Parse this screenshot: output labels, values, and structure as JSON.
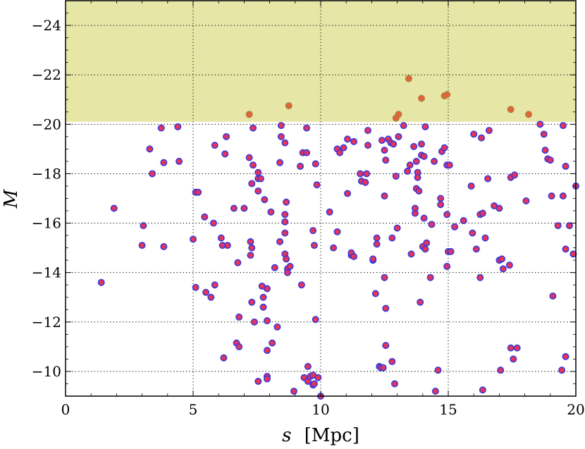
{
  "chart_data": {
    "type": "scatter",
    "xlabel_var": "s",
    "xlabel_unit": "[Mpc]",
    "ylabel": "M",
    "xlim": [
      0,
      20
    ],
    "ylim": [
      -9.0,
      -25.0
    ],
    "y_inverted": true,
    "x_ticks": [
      0,
      5,
      10,
      15,
      20
    ],
    "y_ticks": [
      -24,
      -22,
      -20,
      -18,
      -16,
      -14,
      -12,
      -10
    ],
    "x_tick_labels": [
      "0",
      "5",
      "10",
      "15",
      "20"
    ],
    "y_tick_labels": [
      "−24",
      "−22",
      "−20",
      "−18",
      "−16",
      "−14",
      "−12",
      "−10"
    ],
    "grid": true,
    "shaded_region": {
      "y_from": -20.1,
      "y_to": -25.0,
      "color": "#e6e6a6"
    },
    "marker_colors": {
      "fill": "#e8325a",
      "edge": "#3a3ad8",
      "fill_shaded": "#e8603a",
      "edge_shaded": "#b07f3c"
    },
    "points": [
      [
        1.4,
        -13.6
      ],
      [
        1.9,
        -16.6
      ],
      [
        3.0,
        -15.1
      ],
      [
        3.05,
        -15.9
      ],
      [
        3.3,
        -19.0
      ],
      [
        3.4,
        -18.0
      ],
      [
        3.75,
        -19.85
      ],
      [
        3.85,
        -18.45
      ],
      [
        3.85,
        -15.05
      ],
      [
        4.4,
        -19.9
      ],
      [
        4.45,
        -18.5
      ],
      [
        5.0,
        -15.35
      ],
      [
        5.1,
        -13.4
      ],
      [
        5.1,
        -17.25
      ],
      [
        5.2,
        -17.25
      ],
      [
        5.45,
        -16.25
      ],
      [
        5.5,
        -13.2
      ],
      [
        5.7,
        -13.0
      ],
      [
        5.8,
        -16.0
      ],
      [
        5.85,
        -13.5
      ],
      [
        5.85,
        -19.15
      ],
      [
        6.1,
        -15.4
      ],
      [
        6.15,
        -15.1
      ],
      [
        6.2,
        -10.55
      ],
      [
        6.25,
        -18.8
      ],
      [
        6.3,
        -19.5
      ],
      [
        6.35,
        -15.1
      ],
      [
        6.6,
        -16.6
      ],
      [
        6.7,
        -11.15
      ],
      [
        6.75,
        -14.4
      ],
      [
        6.8,
        -11.0
      ],
      [
        6.8,
        -12.2
      ],
      [
        7.0,
        -16.6
      ],
      [
        7.2,
        -18.65
      ],
      [
        7.25,
        -15.25
      ],
      [
        7.25,
        -14.7
      ],
      [
        7.3,
        -17.6
      ],
      [
        7.3,
        -12.8
      ],
      [
        7.3,
        -15.0
      ],
      [
        7.35,
        -19.85
      ],
      [
        7.35,
        -18.35
      ],
      [
        7.4,
        -12.0
      ],
      [
        7.55,
        -17.8
      ],
      [
        7.55,
        -18.05
      ],
      [
        7.55,
        -17.3
      ],
      [
        7.55,
        -9.6
      ],
      [
        7.65,
        -17.8
      ],
      [
        7.7,
        -13.45
      ],
      [
        7.75,
        -13.0
      ],
      [
        7.75,
        -12.6
      ],
      [
        7.8,
        -16.95
      ],
      [
        7.9,
        -13.35
      ],
      [
        7.9,
        -12.05
      ],
      [
        7.9,
        -10.85
      ],
      [
        7.9,
        -9.8
      ],
      [
        7.9,
        -9.7
      ],
      [
        8.05,
        -16.45
      ],
      [
        8.1,
        -11.15
      ],
      [
        8.2,
        -14.2
      ],
      [
        8.3,
        -11.8
      ],
      [
        8.4,
        -15.25
      ],
      [
        8.4,
        -18.45
      ],
      [
        8.45,
        -19.95
      ],
      [
        8.45,
        -19.5
      ],
      [
        8.6,
        -19.25
      ],
      [
        8.6,
        -16.35
      ],
      [
        8.6,
        -16.05
      ],
      [
        8.6,
        -15.6
      ],
      [
        8.6,
        -14.75
      ],
      [
        8.65,
        -16.85
      ],
      [
        8.65,
        -14.55
      ],
      [
        8.7,
        -14.15
      ],
      [
        8.7,
        -14.0
      ],
      [
        8.8,
        -14.25
      ],
      [
        8.95,
        -9.2
      ],
      [
        9.2,
        -18.3
      ],
      [
        9.25,
        -13.5
      ],
      [
        9.3,
        -18.85
      ],
      [
        9.35,
        -9.75
      ],
      [
        9.45,
        -18.85
      ],
      [
        9.45,
        -19.85
      ],
      [
        9.5,
        -10.2
      ],
      [
        9.5,
        -9.6
      ],
      [
        9.6,
        -9.8
      ],
      [
        9.7,
        -9.85
      ],
      [
        9.7,
        -9.45
      ],
      [
        9.7,
        -15.7
      ],
      [
        9.75,
        -9.5
      ],
      [
        9.75,
        -15.1
      ],
      [
        9.8,
        -18.4
      ],
      [
        9.8,
        -12.1
      ],
      [
        9.85,
        -17.55
      ],
      [
        9.9,
        -9.75
      ],
      [
        10.0,
        -9.0
      ],
      [
        10.35,
        -16.45
      ],
      [
        10.5,
        -15.0
      ],
      [
        10.65,
        -19.0
      ],
      [
        10.65,
        -15.65
      ],
      [
        10.75,
        -18.85
      ],
      [
        10.9,
        -19.05
      ],
      [
        11.05,
        -19.4
      ],
      [
        11.05,
        -17.2
      ],
      [
        11.2,
        -14.7
      ],
      [
        11.2,
        -14.8
      ],
      [
        11.3,
        -14.65
      ],
      [
        11.3,
        -19.3
      ],
      [
        11.55,
        -18.0
      ],
      [
        11.6,
        -17.7
      ],
      [
        11.75,
        -17.65
      ],
      [
        11.8,
        -18.0
      ],
      [
        11.85,
        -19.75
      ],
      [
        11.85,
        -19.15
      ],
      [
        12.05,
        -14.5
      ],
      [
        12.05,
        -14.55
      ],
      [
        12.15,
        -13.15
      ],
      [
        12.2,
        -15.4
      ],
      [
        12.2,
        -15.15
      ],
      [
        12.3,
        -10.2
      ],
      [
        12.35,
        -10.15
      ],
      [
        12.4,
        -19.35
      ],
      [
        12.45,
        -10.15
      ],
      [
        12.5,
        -13.8
      ],
      [
        12.5,
        -18.95
      ],
      [
        12.5,
        -17.1
      ],
      [
        12.55,
        -18.55
      ],
      [
        12.55,
        -11.05
      ],
      [
        12.55,
        -12.55
      ],
      [
        12.65,
        -19.4
      ],
      [
        12.75,
        -19.25
      ],
      [
        12.8,
        -10.4
      ],
      [
        12.8,
        -15.4
      ],
      [
        12.85,
        -19.2
      ],
      [
        12.9,
        -9.5
      ],
      [
        12.95,
        -17.9
      ],
      [
        13.0,
        -15.8
      ],
      [
        13.05,
        -19.5
      ],
      [
        13.25,
        -19.95
      ],
      [
        13.4,
        -18.1
      ],
      [
        13.5,
        -18.35
      ],
      [
        13.55,
        -14.75
      ],
      [
        13.65,
        -19.1
      ],
      [
        13.7,
        -16.4
      ],
      [
        13.7,
        -16.6
      ],
      [
        13.75,
        -18.5
      ],
      [
        13.75,
        -17.4
      ],
      [
        13.8,
        -18.05
      ],
      [
        13.8,
        -17.85
      ],
      [
        13.85,
        -17.3
      ],
      [
        13.9,
        -12.8
      ],
      [
        13.95,
        -18.75
      ],
      [
        13.95,
        -19.2
      ],
      [
        14.0,
        -15.05
      ],
      [
        14.05,
        -18.7
      ],
      [
        14.05,
        -16.2
      ],
      [
        14.1,
        -19.9
      ],
      [
        14.1,
        -14.95
      ],
      [
        14.15,
        -15.2
      ],
      [
        14.3,
        -13.8
      ],
      [
        14.35,
        -15.95
      ],
      [
        14.45,
        -18.5
      ],
      [
        14.5,
        -9.2
      ],
      [
        14.6,
        -10.05
      ],
      [
        14.7,
        -17.0
      ],
      [
        14.7,
        -16.75
      ],
      [
        14.75,
        -18.9
      ],
      [
        14.85,
        -19.05
      ],
      [
        14.95,
        -14.25
      ],
      [
        14.95,
        -16.35
      ],
      [
        14.95,
        -18.35
      ],
      [
        15.0,
        -14.85
      ],
      [
        15.05,
        -18.35
      ],
      [
        15.1,
        -14.85
      ],
      [
        15.25,
        -15.85
      ],
      [
        15.6,
        -16.1
      ],
      [
        15.9,
        -17.5
      ],
      [
        15.95,
        -15.6
      ],
      [
        16.0,
        -19.6
      ],
      [
        16.1,
        -14.95
      ],
      [
        16.25,
        -13.8
      ],
      [
        16.25,
        -16.35
      ],
      [
        16.3,
        -19.45
      ],
      [
        16.35,
        -16.4
      ],
      [
        16.35,
        -9.25
      ],
      [
        16.45,
        -15.4
      ],
      [
        16.55,
        -17.8
      ],
      [
        16.6,
        -19.75
      ],
      [
        16.8,
        -16.7
      ],
      [
        17.0,
        -16.6
      ],
      [
        17.0,
        -14.5
      ],
      [
        17.05,
        -10.05
      ],
      [
        17.1,
        -14.55
      ],
      [
        17.15,
        -14.15
      ],
      [
        17.4,
        -14.3
      ],
      [
        17.45,
        -17.85
      ],
      [
        17.45,
        -10.95
      ],
      [
        17.55,
        -10.5
      ],
      [
        17.6,
        -17.95
      ],
      [
        17.7,
        -10.95
      ],
      [
        18.05,
        -16.9
      ],
      [
        18.6,
        -20.0
      ],
      [
        18.75,
        -19.6
      ],
      [
        18.8,
        -18.95
      ],
      [
        18.9,
        -18.6
      ],
      [
        19.0,
        -18.55
      ],
      [
        19.05,
        -17.1
      ],
      [
        19.1,
        -13.05
      ],
      [
        19.3,
        -15.9
      ],
      [
        19.45,
        -10.05
      ],
      [
        19.5,
        -19.95
      ],
      [
        19.5,
        -17.1
      ],
      [
        19.6,
        -10.6
      ],
      [
        19.6,
        -14.95
      ],
      [
        19.6,
        -18.3
      ],
      [
        19.75,
        -15.9
      ],
      [
        19.9,
        -14.75
      ],
      [
        20.0,
        -17.5
      ]
    ],
    "points_shaded": [
      [
        7.2,
        -20.4
      ],
      [
        8.75,
        -20.75
      ],
      [
        12.95,
        -20.25
      ],
      [
        13.05,
        -20.4
      ],
      [
        13.45,
        -21.85
      ],
      [
        13.95,
        -21.05
      ],
      [
        14.85,
        -21.15
      ],
      [
        14.95,
        -21.2
      ],
      [
        17.45,
        -20.6
      ],
      [
        18.15,
        -20.4
      ]
    ]
  }
}
